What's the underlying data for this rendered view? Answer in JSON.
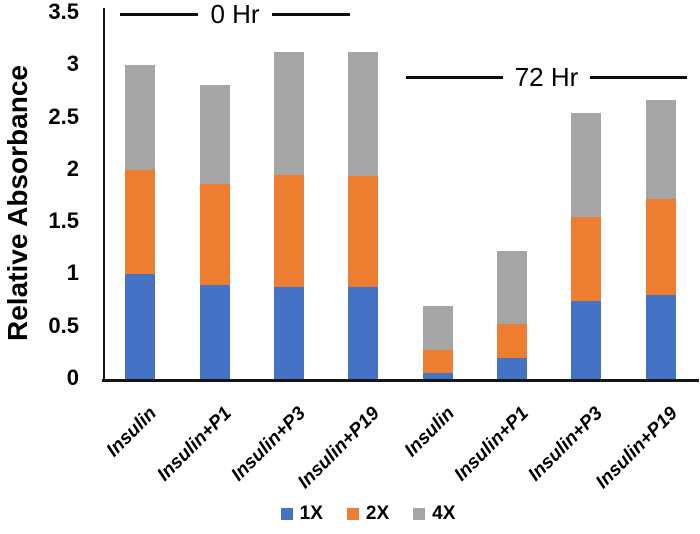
{
  "chart_data": {
    "type": "bar",
    "stacked": true,
    "title": "",
    "xlabel": "",
    "ylabel": "Relative Absorbance",
    "ylim": [
      0,
      3.5
    ],
    "ytick_values": [
      0,
      0.5,
      1,
      1.5,
      2,
      2.5,
      3,
      3.5
    ],
    "ytick_labels": [
      "0",
      "0.5",
      "1",
      "1.5",
      "2",
      "2.5",
      "3",
      "3.5"
    ],
    "categories": [
      "Insulin",
      "Insulin+P1",
      "Insulin+P3",
      "Insulin+P19",
      "Insulin",
      "Insulin+P1",
      "Insulin+P3",
      "Insulin+P19"
    ],
    "groups": [
      {
        "label": "0 Hr",
        "first_bar": 0,
        "last_bar": 3
      },
      {
        "label": "72 Hr",
        "first_bar": 4,
        "last_bar": 7
      }
    ],
    "series": [
      {
        "name": "1X",
        "color": "#4472C4",
        "values": [
          1.0,
          0.9,
          0.88,
          0.88,
          0.06,
          0.2,
          0.75,
          0.8
        ]
      },
      {
        "name": "2X",
        "color": "#ED7D31",
        "values": [
          1.0,
          0.96,
          1.07,
          1.06,
          0.22,
          0.33,
          0.8,
          0.92
        ]
      },
      {
        "name": "4X",
        "color": "#A5A5A5",
        "values": [
          1.0,
          0.95,
          1.18,
          1.19,
          0.42,
          0.69,
          0.99,
          0.95
        ]
      }
    ],
    "grid": false,
    "legend_position": "bottom",
    "background": "#FFFFFF",
    "axis_color": "#000000"
  }
}
